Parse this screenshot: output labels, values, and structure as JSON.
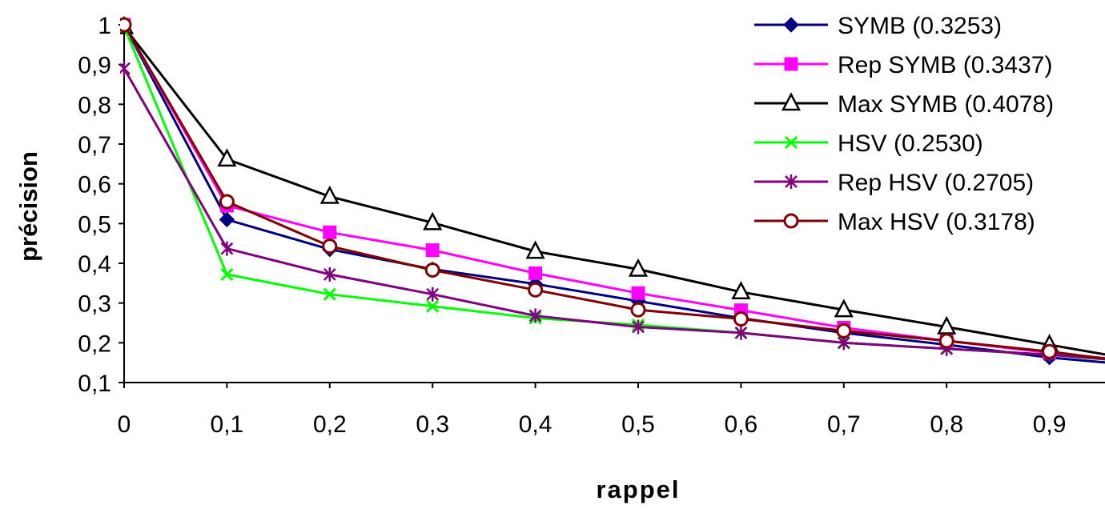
{
  "chart_data": {
    "type": "line",
    "xlabel": "rappel",
    "ylabel": "précision",
    "x": [
      0,
      0.1,
      0.2,
      0.3,
      0.4,
      0.5,
      0.6,
      0.7,
      0.8,
      0.9,
      1.0
    ],
    "xlim": [
      0,
      0.96
    ],
    "ylim": [
      0.1,
      1.0
    ],
    "x_ticks": [
      "0",
      "0,1",
      "0,2",
      "0,3",
      "0,4",
      "0,5",
      "0,6",
      "0,7",
      "0,8",
      "0,9"
    ],
    "y_ticks": [
      "0,1",
      "0,2",
      "0,3",
      "0,4",
      "0,5",
      "0,6",
      "0,7",
      "0,8",
      "0,9",
      "1"
    ],
    "grid": false,
    "legend_position": "top-right",
    "series": [
      {
        "name": "SYMB (0.3253)",
        "color": "#000080",
        "marker": "diamond",
        "values": [
          1.0,
          0.51,
          0.435,
          0.385,
          0.348,
          0.305,
          0.262,
          0.225,
          0.195,
          0.163,
          0.14
        ]
      },
      {
        "name": "Rep SYMB (0.3437)",
        "color": "#FF00FF",
        "marker": "square",
        "values": [
          1.0,
          0.545,
          0.478,
          0.433,
          0.375,
          0.325,
          0.282,
          0.238,
          0.205,
          0.175,
          0.15
        ]
      },
      {
        "name": "Max SYMB (0.4078)",
        "color": "#000000",
        "marker": "triangle",
        "values": [
          0.995,
          0.662,
          0.568,
          0.502,
          0.43,
          0.385,
          0.328,
          0.283,
          0.24,
          0.195,
          0.15
        ]
      },
      {
        "name": "HSV (0.2530)",
        "color": "#00FF00",
        "marker": "x",
        "values": [
          0.995,
          0.372,
          0.322,
          0.292,
          0.262,
          0.245,
          0.225,
          0.2,
          0.185,
          0.17,
          0.148
        ]
      },
      {
        "name": "Rep HSV (0.2705)",
        "color": "#800080",
        "marker": "star",
        "values": [
          0.89,
          0.437,
          0.372,
          0.322,
          0.268,
          0.24,
          0.225,
          0.2,
          0.185,
          0.17,
          0.15
        ]
      },
      {
        "name": "Max HSV (0.3178)",
        "color": "#800000",
        "marker": "circle",
        "values": [
          1.0,
          0.555,
          0.443,
          0.383,
          0.333,
          0.283,
          0.26,
          0.23,
          0.205,
          0.178,
          0.145
        ]
      }
    ]
  }
}
